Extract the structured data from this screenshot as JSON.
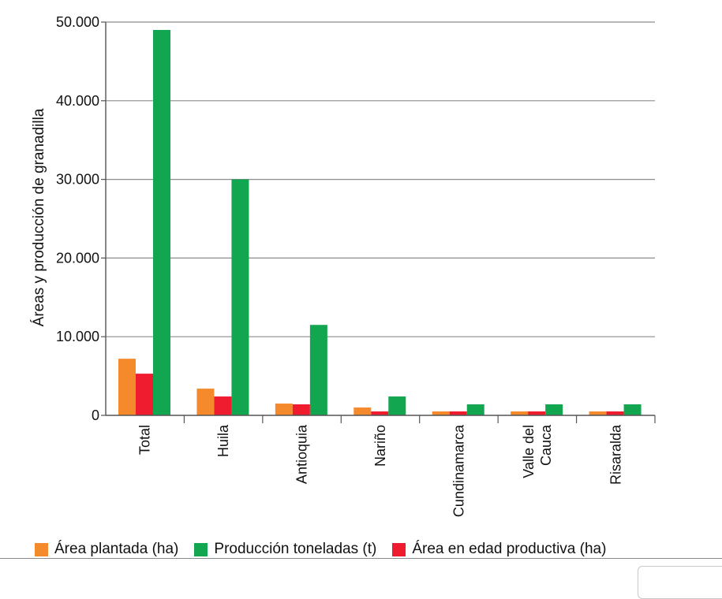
{
  "chart_data": {
    "type": "bar",
    "title": "",
    "xlabel": "",
    "ylabel": "Áreas y producción de granadilla",
    "ylim": [
      0,
      50000
    ],
    "yticks": [
      0,
      10000,
      20000,
      30000,
      40000,
      50000
    ],
    "ytick_labels": [
      "0",
      "10.000",
      "20.000",
      "30.000",
      "40.000",
      "50.000"
    ],
    "grid": true,
    "categories": [
      "Total",
      "Huila",
      "Antioquia",
      "Nariño",
      "Cundinamarca",
      "Valle del Cauca",
      "Risaralda"
    ],
    "category_labels": [
      [
        "Total"
      ],
      [
        "Huila"
      ],
      [
        "Antioquia"
      ],
      [
        "Nariño"
      ],
      [
        "Cundinamarca"
      ],
      [
        "Valle del",
        "Cauca"
      ],
      [
        "Risaralda"
      ]
    ],
    "series": [
      {
        "name": "Área plantada (ha)",
        "color": "#f58a2c",
        "values": [
          7200,
          3400,
          1500,
          1000,
          500,
          500,
          500
        ]
      },
      {
        "name": "Área en edad productiva (ha)",
        "color": "#ee1c2e",
        "values": [
          5300,
          2400,
          1400,
          500,
          500,
          500,
          500
        ]
      },
      {
        "name": "Producción toneladas (t)",
        "color": "#12a650",
        "values": [
          49000,
          30000,
          11500,
          2400,
          1400,
          1400,
          1400
        ]
      }
    ],
    "legend": {
      "placement": "bottom",
      "items": [
        {
          "label": "Área plantada (ha)",
          "color": "#f58a2c"
        },
        {
          "label": "Producción toneladas (t)",
          "color": "#12a650"
        },
        {
          "label": "Área en edad productiva (ha)",
          "color": "#ee1c2e"
        }
      ]
    }
  }
}
